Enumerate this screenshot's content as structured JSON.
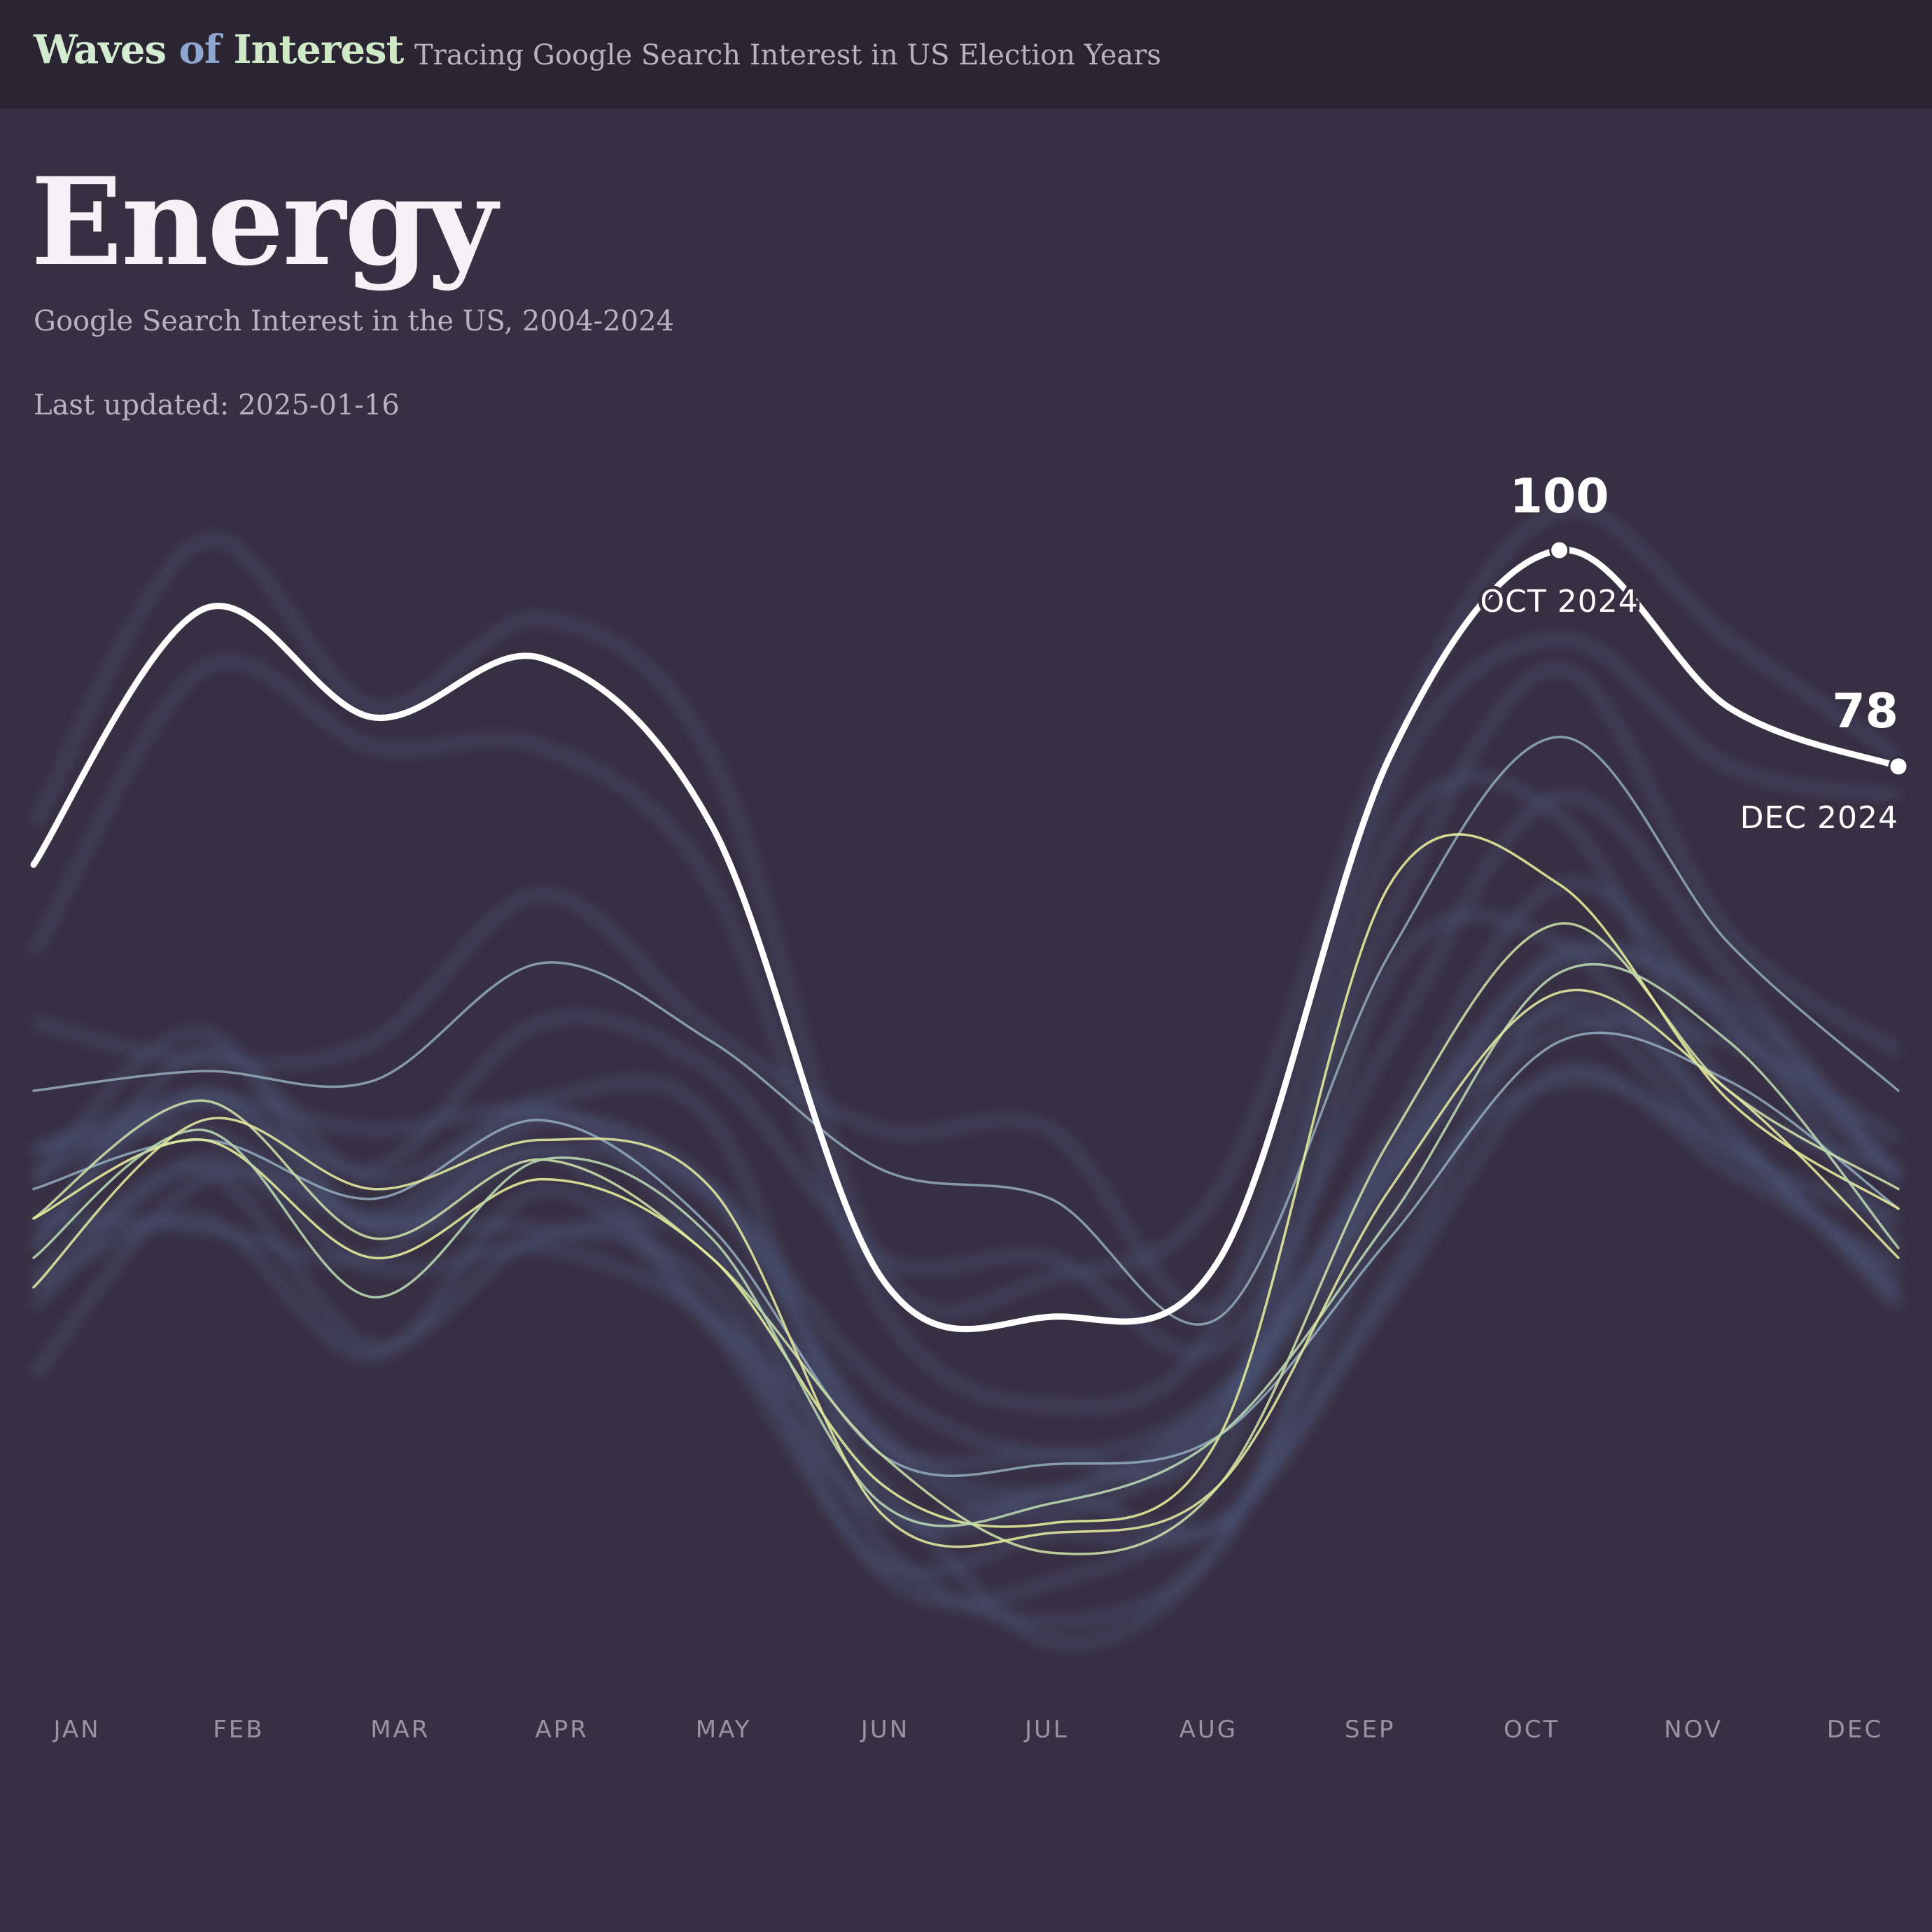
{
  "header": {
    "brand_part1": "Waves",
    "brand_part2": "of",
    "brand_part3": "Interest",
    "tagline": "Tracing Google Search Interest in US Election Years"
  },
  "page": {
    "title": "Energy",
    "subtitle": "Google Search Interest in the US, 2004-2024",
    "updated": "Last updated: 2025-01-16"
  },
  "colors": {
    "background": "#372f42",
    "header_bg": "#2b2533",
    "current_year": "#ffffff",
    "background_years": "#4a5678"
  },
  "chart_data": {
    "type": "line",
    "title": "",
    "xlabel": "",
    "ylabel": "",
    "categories": [
      "JAN",
      "FEB",
      "MAR",
      "APR",
      "MAY",
      "JUN",
      "JUL",
      "AUG",
      "SEP",
      "OCT",
      "NOV",
      "DEC"
    ],
    "ylim": [
      0,
      100
    ],
    "grid": false,
    "series": [
      {
        "values": [
          68,
          94,
          83,
          89,
          72,
          26,
          22,
          28,
          79,
          100,
          84,
          78
        ],
        "color": "#ffffff",
        "width": 9,
        "highlight": true
      },
      {
        "values": [
          45,
          47,
          46,
          58,
          50,
          37,
          34,
          22,
          59,
          81,
          60,
          45
        ],
        "color": "#8fa6b0",
        "width": 3.5
      },
      {
        "values": [
          35,
          40,
          34,
          42,
          31,
          8,
          7,
          10,
          30,
          50,
          46,
          33
        ],
        "color": "#8fa6b8",
        "width": 3.5
      },
      {
        "values": [
          32,
          44,
          30,
          38,
          28,
          8,
          -2,
          5,
          40,
          62,
          45,
          35
        ],
        "color": "#c9dca6",
        "width": 3.5
      },
      {
        "values": [
          32,
          40,
          28,
          36,
          28,
          5,
          1,
          10,
          66,
          66,
          44,
          33
        ],
        "color": "#e3eb9a",
        "width": 3.5
      },
      {
        "values": [
          28,
          41,
          24,
          38,
          30,
          3,
          3,
          10,
          32,
          57,
          50,
          29
        ],
        "color": "#b8d4b0",
        "width": 3.5
      },
      {
        "values": [
          25,
          42,
          35,
          40,
          35,
          2,
          0,
          5,
          35,
          55,
          45,
          28
        ],
        "color": "#dfe59d",
        "width": 3.5
      }
    ],
    "peak_annotation": {
      "value": "100",
      "label": "OCT 2024",
      "index": 9
    },
    "end_annotation": {
      "value": "78",
      "label": "DEC 2024",
      "index": 11
    }
  }
}
